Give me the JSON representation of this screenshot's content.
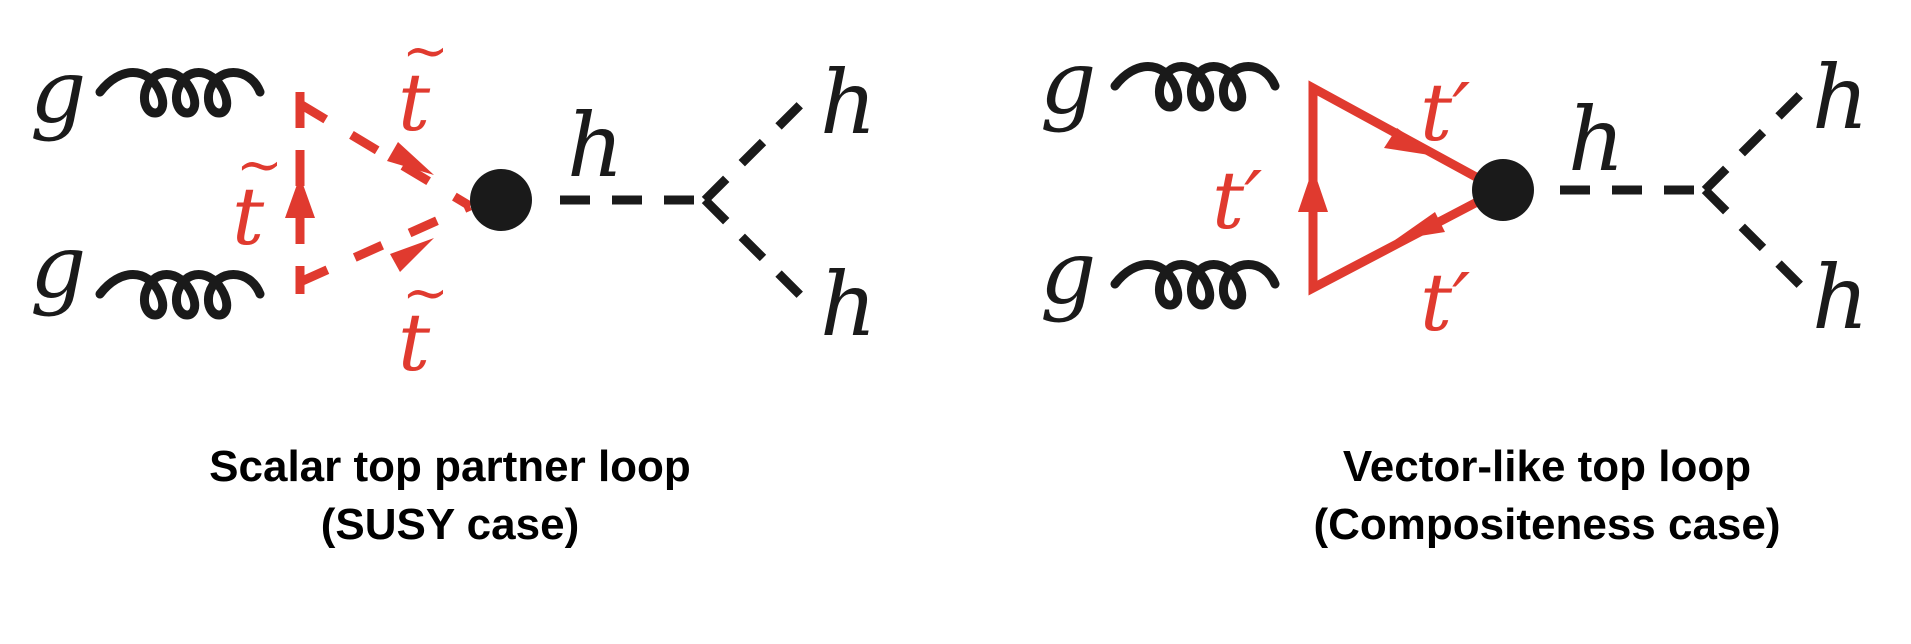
{
  "left_diagram": {
    "gluon_labels": [
      "g",
      "g"
    ],
    "loop_particle_label": "t",
    "loop_particle_tilde": "~",
    "higgs_labels": [
      "h",
      "h",
      "h"
    ],
    "caption_line1": "Scalar top partner loop",
    "caption_line2": "(SUSY case)"
  },
  "right_diagram": {
    "gluon_labels": [
      "g",
      "g"
    ],
    "loop_particle_label": "t′",
    "higgs_labels": [
      "h",
      "h",
      "h"
    ],
    "caption_line1": "Vector-like top loop",
    "caption_line2": "(Compositeness case)"
  },
  "colors": {
    "loop": "#e03a2f",
    "lines": "#1a1a1a"
  }
}
